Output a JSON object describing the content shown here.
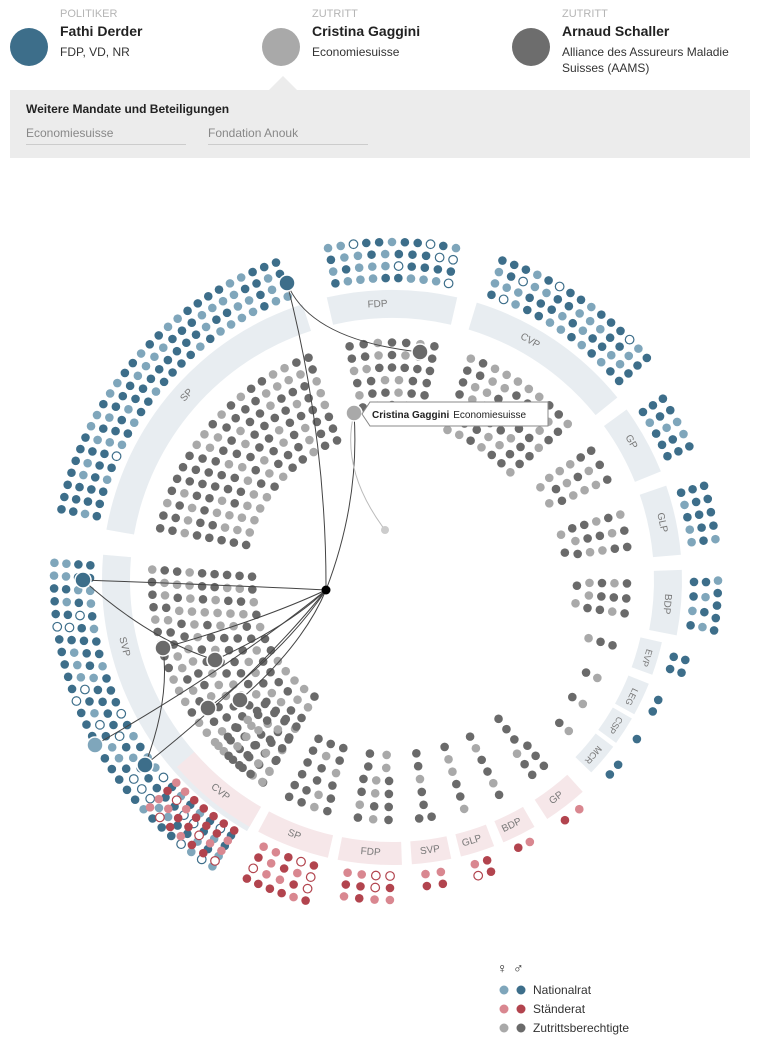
{
  "header": {
    "cards": [
      {
        "role": "POLITIKER",
        "name": "Fathi Derder",
        "detail": "FDP, VD, NR"
      },
      {
        "role": "ZUTRITT",
        "name": "Cristina Gaggini",
        "detail": "Economiesuisse"
      },
      {
        "role": "ZUTRITT",
        "name": "Arnaud Schaller",
        "detail": "Alliance des Assureurs Maladie Suisses (AAMS)"
      }
    ]
  },
  "mandates": {
    "title": "Weitere Mandate und Beteiligungen",
    "items": [
      "Economiesuisse",
      "Fondation Anouk"
    ]
  },
  "nationalrat_parties": [
    "SVP",
    "SP",
    "FDP",
    "CVP",
    "GP",
    "GLP",
    "BDP",
    "EVP",
    "LEG",
    "CSP",
    "MCR"
  ],
  "staenderat_parties": [
    "CVP",
    "SP",
    "FDP",
    "SVP",
    "GLP",
    "BDP",
    "GP"
  ],
  "tooltip": {
    "name": "Cristina Gaggini",
    "org": "Economiesuisse"
  },
  "legend": {
    "female": "♀",
    "male": "♂",
    "items": [
      "Nationalrat",
      "Ständerat",
      "Zutrittsberechtigte"
    ]
  }
}
